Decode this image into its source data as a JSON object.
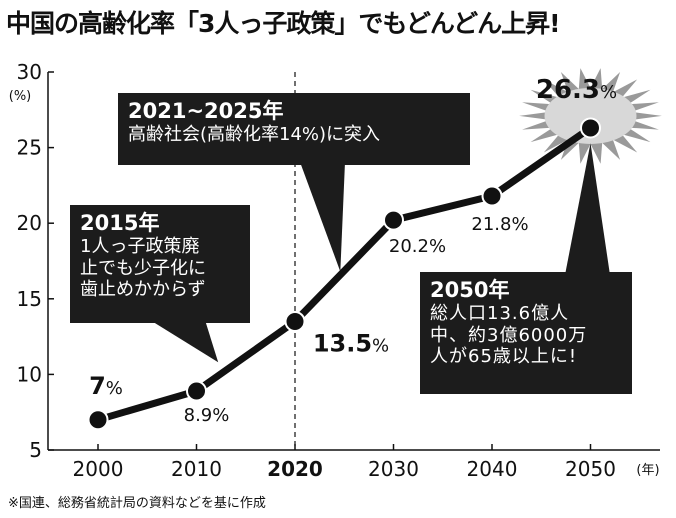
{
  "title": "中国の高齢化率「3人っ子政策」でもどんどん上昇!",
  "source_note": "※国連、総務省統計局の資料などを基に作成",
  "colors": {
    "line": "#111111",
    "callout_bg": "#1c1c1c",
    "burst": "#9a9a9a"
  },
  "chart_data": {
    "type": "line",
    "title": "中国の高齢化率「3人っ子政策」でもどんどん上昇!",
    "xlabel": "年",
    "ylabel": "%",
    "x": [
      2000,
      2010,
      2020,
      2030,
      2040,
      2050
    ],
    "x_tick_labels": [
      "2000",
      "2010",
      "2020",
      "2030",
      "2040",
      "2050"
    ],
    "x_unit": "(年)",
    "y_unit": "(%)",
    "ylim": [
      5,
      30
    ],
    "y_ticks": [
      5,
      10,
      15,
      20,
      25,
      30
    ],
    "grid": false,
    "reference_line_x": 2020,
    "series": [
      {
        "values": [
          7,
          8.9,
          13.5,
          20.2,
          21.8,
          26.3
        ]
      }
    ],
    "data_labels": [
      {
        "num": "7",
        "unit": "%",
        "style": "bold"
      },
      {
        "num": "8.9",
        "unit": "%",
        "style": "normal"
      },
      {
        "num": "13.5",
        "unit": "%",
        "style": "bold"
      },
      {
        "num": "20.2",
        "unit": "%",
        "style": "normal"
      },
      {
        "num": "21.8",
        "unit": "%",
        "style": "normal"
      },
      {
        "num": "26.3",
        "unit": "%",
        "style": "bold"
      }
    ],
    "annotations": [
      {
        "id": "2015",
        "head": "2015年",
        "body": "1人っ子政策廃\n止でも少子化に\n歯止めかからず",
        "anchor_x": 2012.5,
        "anchor_y": 10.2
      },
      {
        "id": "2021",
        "head": "2021~2025年",
        "body": "高齢社会(高齢化率14%)に突入",
        "anchor_x": 2024.5,
        "anchor_y": 16.6
      },
      {
        "id": "2050",
        "head": "2050年",
        "body": "総人口13.6億人\n中、約3億6000万\n人が65歳以上に!",
        "anchor_x": 2050,
        "anchor_y": 25.2
      }
    ]
  }
}
